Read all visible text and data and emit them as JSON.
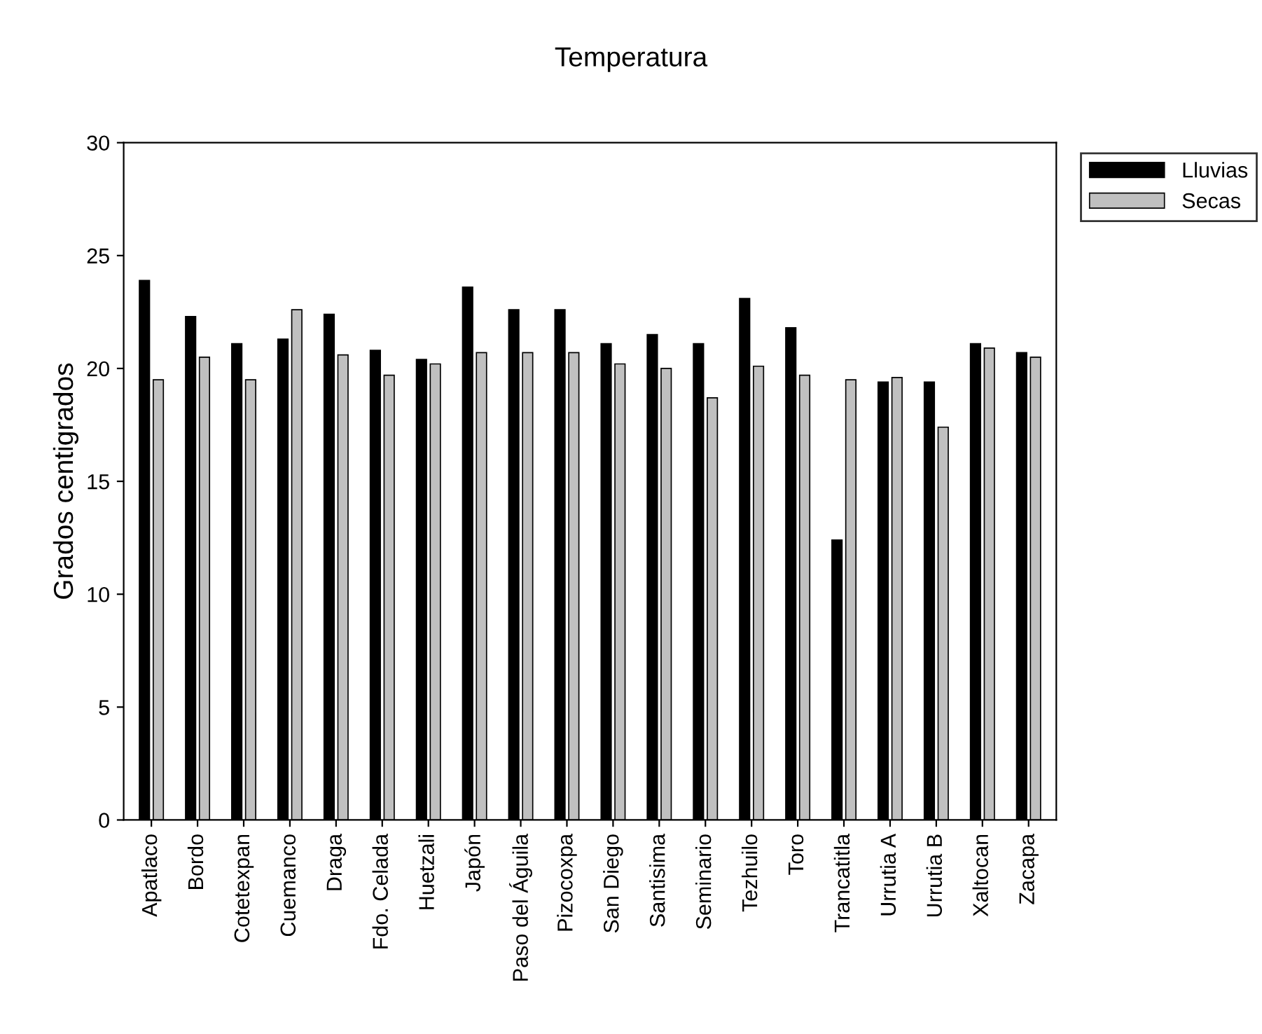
{
  "chart_data": {
    "type": "bar",
    "title": "Temperatura",
    "ylabel": "Grados centigrados",
    "categories": [
      "Apatlaco",
      "Bordo",
      "Cotetexpan",
      "Cuemanco",
      "Draga",
      "Fdo. Celada",
      "Huetzali",
      "Japón",
      "Paso del Águila",
      "Pizocoxpa",
      "San Diego",
      "Santisima",
      "Seminario",
      "Tezhuilo",
      "Toro",
      "Trancatitla",
      "Urrutia A",
      "Urrutia B",
      "Xaltocan",
      "Zacapa"
    ],
    "series": [
      {
        "name": "Lluvias",
        "color": "#000000",
        "values": [
          23.9,
          22.3,
          21.1,
          21.3,
          22.4,
          20.8,
          20.4,
          23.6,
          22.6,
          22.6,
          21.1,
          21.5,
          21.1,
          23.1,
          21.8,
          12.4,
          19.4,
          19.4,
          21.1,
          20.7
        ]
      },
      {
        "name": "Secas",
        "color": "#c0c0c0",
        "values": [
          19.5,
          20.5,
          19.5,
          22.6,
          20.6,
          19.7,
          20.2,
          20.7,
          20.7,
          20.7,
          20.2,
          20.0,
          18.7,
          20.1,
          19.7,
          19.5,
          19.6,
          17.4,
          20.9,
          20.5
        ]
      }
    ],
    "ylim": [
      0,
      30
    ],
    "yticks": [
      0,
      5,
      10,
      15,
      20,
      25,
      30
    ],
    "grid": false,
    "legend": "top right"
  }
}
